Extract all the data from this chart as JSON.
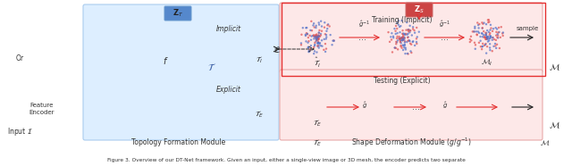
{
  "caption": "Figure 3. Overview of our DT-Net framework. Given an input, either a single-view image or 3D mesh, the encoder predicts two separate",
  "caption_italic_word": "Figure 3.",
  "bg_color": "#ffffff",
  "fig_width": 6.4,
  "fig_height": 1.86,
  "topology_module_bg": "#ddeeff",
  "shape_deform_top_bg": "#fde8e8",
  "shape_deform_bot_bg": "#fde8e8",
  "labels": {
    "ZT": "Z_T",
    "ZS": "Z_S",
    "implicit": "Implicit",
    "explicit": "Explicit",
    "f": "f",
    "T": "T",
    "TI": "T_I",
    "TE": "T_E",
    "ThatI": "hat{T}_I",
    "ThatE": "T_E",
    "M": "M",
    "MI": "M_I",
    "L": "L",
    "ghat_inv": "hat{g}^{-1}",
    "ghat": "hat{g}",
    "sample": "sample",
    "training": "Training (Implicit)",
    "testing": "Testing (Explicit)",
    "topology_module": "Topology Formation Module",
    "shape_deform_module": "Shape Deformation Module (g/g^{-1})",
    "feature_encoder": "Feature Encoder",
    "input": "Input"
  },
  "arrow_color_red": "#e53030",
  "arrow_color_black": "#222222",
  "dot_color_red": "#e05050",
  "dot_color_blue": "#5070c8"
}
